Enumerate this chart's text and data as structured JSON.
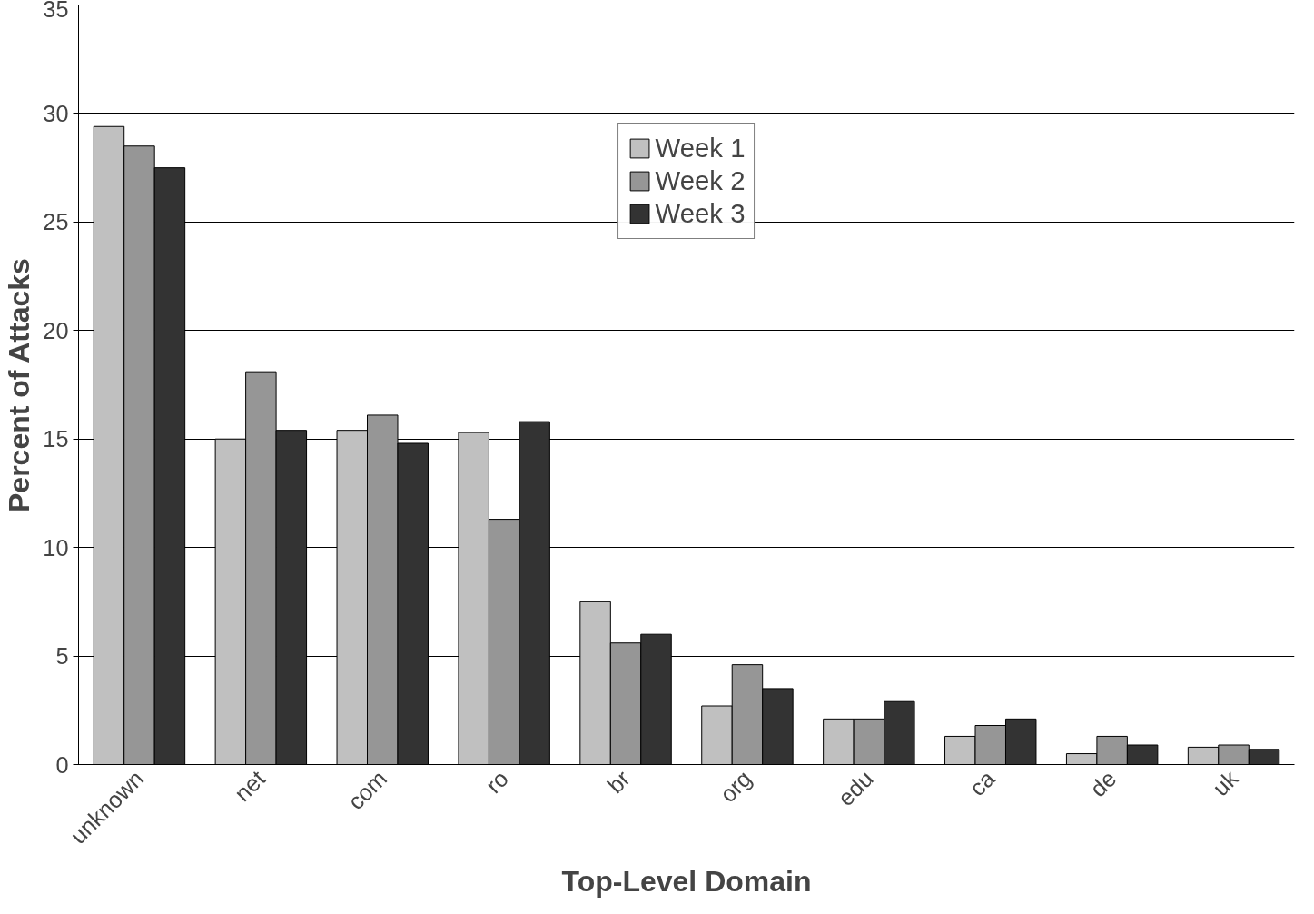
{
  "chart_data": {
    "type": "bar",
    "xlabel": "Top-Level Domain",
    "ylabel": "Percent of Attacks",
    "categories": [
      "unknown",
      "net",
      "com",
      "ro",
      "br",
      "org",
      "edu",
      "ca",
      "de",
      "uk"
    ],
    "series": [
      {
        "name": "Week 1",
        "color": "#c0c0c0",
        "values": [
          29.4,
          15.0,
          15.4,
          15.3,
          7.5,
          2.7,
          2.1,
          1.3,
          0.5,
          0.8
        ]
      },
      {
        "name": "Week 2",
        "color": "#969696",
        "values": [
          28.5,
          18.1,
          16.1,
          11.3,
          5.6,
          4.6,
          2.1,
          1.8,
          1.3,
          0.9
        ]
      },
      {
        "name": "Week 3",
        "color": "#333333",
        "values": [
          27.5,
          15.4,
          14.8,
          15.8,
          6.0,
          3.5,
          2.9,
          2.1,
          0.9,
          0.7
        ]
      }
    ],
    "ylim": [
      0,
      35
    ],
    "yticks": [
      0,
      5,
      10,
      15,
      20,
      25,
      30,
      35
    ],
    "grid": "y",
    "legend": "top"
  }
}
